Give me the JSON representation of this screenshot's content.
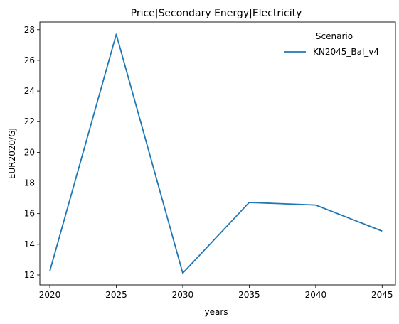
{
  "chart_data": {
    "type": "line",
    "title": "Price|Secondary Energy|Electricity",
    "xlabel": "years",
    "ylabel": "EUR2020/GJ",
    "x": [
      2020,
      2025,
      2030,
      2035,
      2040,
      2045
    ],
    "series": [
      {
        "name": "KN2045_Bal_v4",
        "values": [
          12.25,
          27.7,
          12.12,
          16.73,
          16.56,
          14.86
        ],
        "color": "#1f77b4"
      }
    ],
    "xticks": [
      2020,
      2025,
      2030,
      2035,
      2040,
      2045
    ],
    "yticks": [
      12,
      14,
      16,
      18,
      20,
      22,
      24,
      26,
      28
    ],
    "xlim": [
      2019.25,
      2046.0
    ],
    "ylim": [
      11.35,
      28.5
    ],
    "grid": false,
    "legend": {
      "title": "Scenario",
      "placement": "top-right"
    }
  }
}
